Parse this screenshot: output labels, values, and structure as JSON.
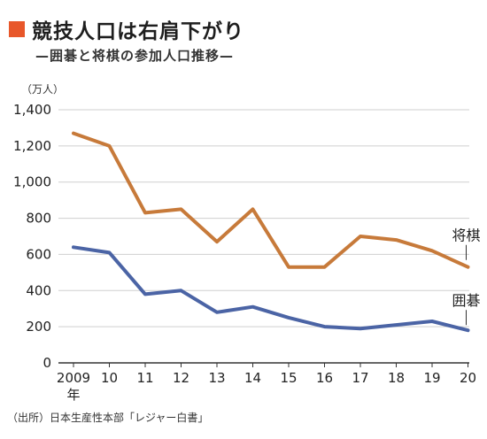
{
  "header": {
    "title": "競技人口は右肩下がり",
    "subtitle": "—囲碁と将棋の参加人口推移—",
    "accent_color": "#e8572a"
  },
  "unit_label": "（万人）",
  "source": "（出所）日本生産性本部「レジャー白書」",
  "chart_data": {
    "type": "line",
    "categories": [
      "2009",
      "10",
      "11",
      "12",
      "13",
      "14",
      "15",
      "16",
      "17",
      "18",
      "19",
      "20"
    ],
    "first_year_suffix": "年",
    "ylim": [
      0,
      1400
    ],
    "yticks": [
      "0",
      "200",
      "400",
      "600",
      "800",
      "1,000",
      "1,200",
      "1,400"
    ],
    "ytick_values": [
      0,
      200,
      400,
      600,
      800,
      1000,
      1200,
      1400
    ],
    "grid": "horizontal",
    "series": [
      {
        "name": "将棋",
        "color": "#c77a3a",
        "values": [
          1270,
          1200,
          830,
          850,
          670,
          850,
          530,
          530,
          700,
          680,
          620,
          530
        ]
      },
      {
        "name": "囲碁",
        "color": "#4b64a5",
        "values": [
          640,
          610,
          380,
          400,
          280,
          310,
          250,
          200,
          190,
          210,
          230,
          180
        ]
      }
    ]
  }
}
